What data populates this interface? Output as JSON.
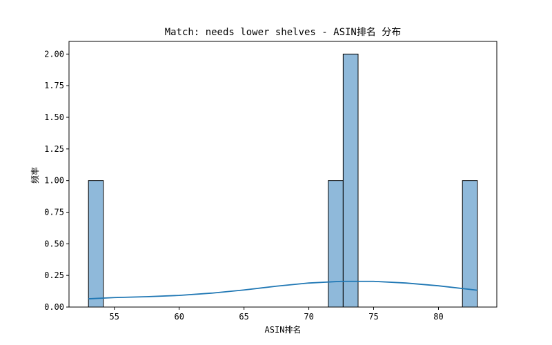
{
  "chart_data": {
    "type": "bar",
    "title": "Match: needs lower shelves - ASIN排名 分布",
    "xlabel": "ASIN排名",
    "ylabel": "频率",
    "xlim": [
      51.5,
      84.5
    ],
    "ylim": [
      0,
      2.1
    ],
    "xticks": [
      55,
      60,
      65,
      70,
      75,
      80
    ],
    "xtick_labels": [
      "55",
      "60",
      "65",
      "70",
      "75",
      "80"
    ],
    "yticks": [
      0,
      0.25,
      0.5,
      0.75,
      1.0,
      1.25,
      1.5,
      1.75,
      2.0
    ],
    "ytick_labels": [
      "0.00",
      "0.25",
      "0.50",
      "0.75",
      "1.00",
      "1.25",
      "1.50",
      "1.75",
      "2.00"
    ],
    "bins": [
      {
        "x0": 53.0,
        "x1": 54.15,
        "count": 1
      },
      {
        "x0": 71.5,
        "x1": 72.65,
        "count": 1
      },
      {
        "x0": 72.65,
        "x1": 73.8,
        "count": 2
      },
      {
        "x0": 81.85,
        "x1": 83.0,
        "count": 1
      }
    ],
    "kde": {
      "name": "KDE",
      "x": [
        53,
        55,
        57.5,
        60,
        62.5,
        65,
        67.5,
        70,
        72.5,
        75,
        77.5,
        80,
        83
      ],
      "y": [
        0.065,
        0.075,
        0.082,
        0.092,
        0.11,
        0.135,
        0.165,
        0.19,
        0.203,
        0.203,
        0.19,
        0.168,
        0.133
      ]
    },
    "colors": {
      "bar_fill": "#8fb9da",
      "bar_edge": "#000000",
      "kde_line": "#1f77b4"
    },
    "grid": false
  }
}
